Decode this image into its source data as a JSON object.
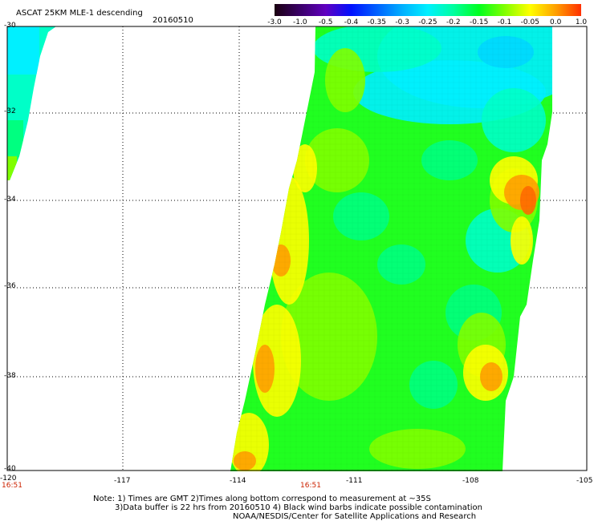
{
  "header": {
    "title": "ASCAT 25KM MLE-1 descending",
    "date": "20160510"
  },
  "colorbar": {
    "ticks": [
      "-3.0",
      "-1.0",
      "-0.5",
      "-0.4",
      "-0.35",
      "-0.3",
      "-0.25",
      "-0.2",
      "-0.15",
      "-0.1",
      "-0.05",
      "0.0",
      "1.0"
    ],
    "colors": [
      "#1a0010",
      "#3a0068",
      "#6000c0",
      "#0010ff",
      "#0060ff",
      "#00b0ff",
      "#00f0ff",
      "#00ffa0",
      "#00ff20",
      "#80ff00",
      "#ffff00",
      "#ffa000",
      "#ff3000"
    ]
  },
  "map": {
    "lon_labels": [
      "-120",
      "-117",
      "-114",
      "-111",
      "-108",
      "-105"
    ],
    "lat_labels": [
      "-30",
      "-32",
      "-34",
      "-36",
      "-38",
      "-40"
    ],
    "time_labels": [
      "16:51",
      "16:51"
    ],
    "colors": {
      "cyan": "#00f0ff",
      "aqua": "#00ffc8",
      "teal": "#00ff80",
      "green": "#20ff20",
      "lime": "#80ff00",
      "yellow": "#ffff00",
      "orange": "#ffa000",
      "deeporange": "#ff6a00"
    }
  },
  "notes": {
    "line1": "Note: 1) Times are GMT 2)Times along bottom correspond to measurement at ~35S",
    "line2": "3)Data buffer is 22 hrs from 20160510 4) Black wind barbs indicate possible contamination",
    "line3": "NOAA/NESDIS/Center for Satellite Applications and Research"
  }
}
